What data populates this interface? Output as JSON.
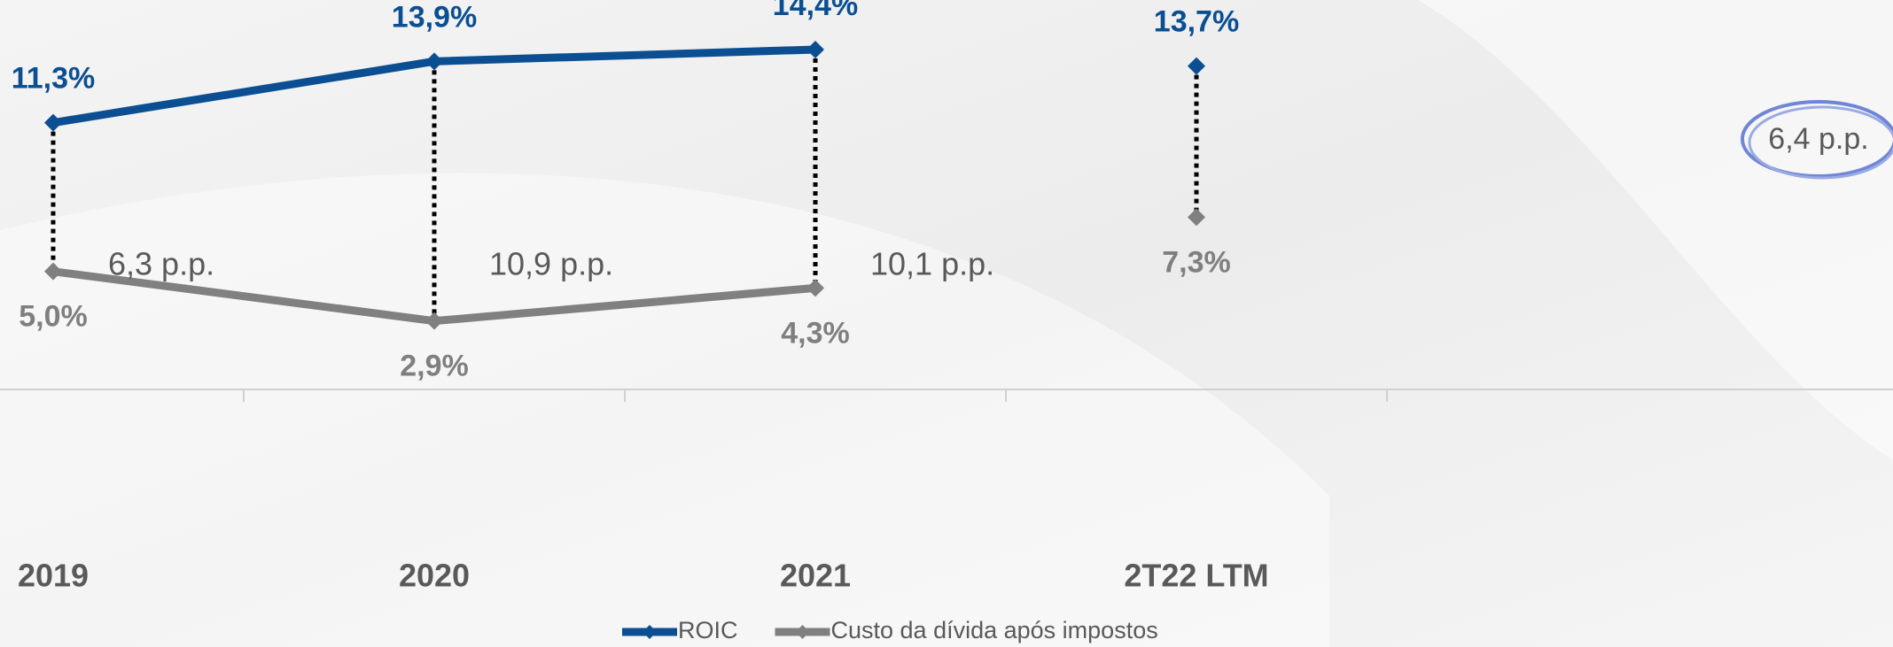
{
  "chart_data": {
    "type": "line",
    "categories": [
      "2019",
      "2020",
      "2021",
      "2T22 LTM"
    ],
    "series": [
      {
        "name": "ROIC",
        "color": "#0b4f92",
        "values": [
          11.3,
          13.9,
          14.4,
          13.7
        ],
        "value_labels": [
          "11,3%",
          "13,9%",
          "14,4%",
          "13,7%"
        ]
      },
      {
        "name": "Custo da dívida após impostos",
        "color": "#808080",
        "values": [
          5.0,
          2.9,
          4.3,
          7.3
        ],
        "value_labels": [
          "5,0%",
          "2,9%",
          "4,3%",
          "7,3%"
        ]
      }
    ],
    "annotations": [
      "6,3 p.p.",
      "10,9 p.p.",
      "10,1 p.p.",
      "6,4 p.p."
    ],
    "ylim": [
      0,
      16.5
    ],
    "legend": "bottom"
  }
}
